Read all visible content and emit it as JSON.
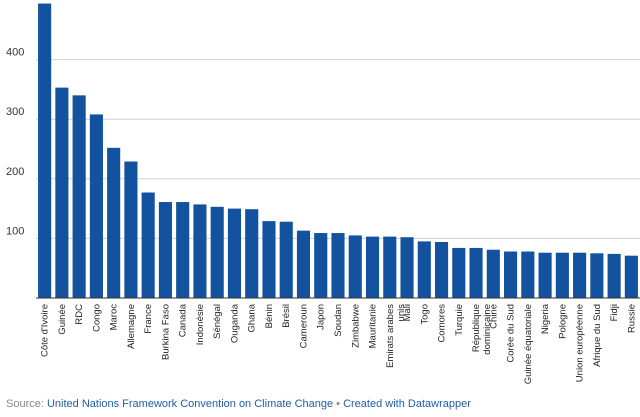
{
  "chart_data": {
    "type": "bar",
    "categories": [
      "Côte d'Ivoire",
      "Guinée",
      "RDC",
      "Congo",
      "Maroc",
      "Allemagne",
      "France",
      "Burkina Faso",
      "Canada",
      "Indonésie",
      "Sénégal",
      "Ouganda",
      "Ghana",
      "Bénin",
      "Brésil",
      "Cameroun",
      "Japon",
      "Soudan",
      "Zimbabwe",
      "Mauritanie",
      "Emirats arabes unis",
      "Mali",
      "Togo",
      "Comores",
      "Turquie",
      "République dominicaine",
      "Chine",
      "Corée du Sud",
      "Guinée équatoriale",
      "Nigeria",
      "Pologne",
      "Union européenne",
      "Afrique du Sud",
      "Fidji",
      "Russie"
    ],
    "values": [
      494,
      353,
      340,
      308,
      252,
      229,
      177,
      161,
      161,
      157,
      153,
      150,
      149,
      129,
      128,
      113,
      109,
      109,
      105,
      103,
      103,
      102,
      95,
      94,
      84,
      84,
      81,
      78,
      78,
      76,
      76,
      76,
      75,
      74,
      71
    ],
    "ylim": [
      0,
      500
    ],
    "yticks": [
      100,
      200,
      300,
      400
    ],
    "grid": true,
    "bar_color": "#12529f",
    "title": "",
    "xlabel": "",
    "ylabel": ""
  },
  "footer": {
    "source_prefix": "Source: ",
    "source_name": "United Nations Framework Convention on Climate Change",
    "separator": " • ",
    "credit": "Created with Datawrapper"
  }
}
